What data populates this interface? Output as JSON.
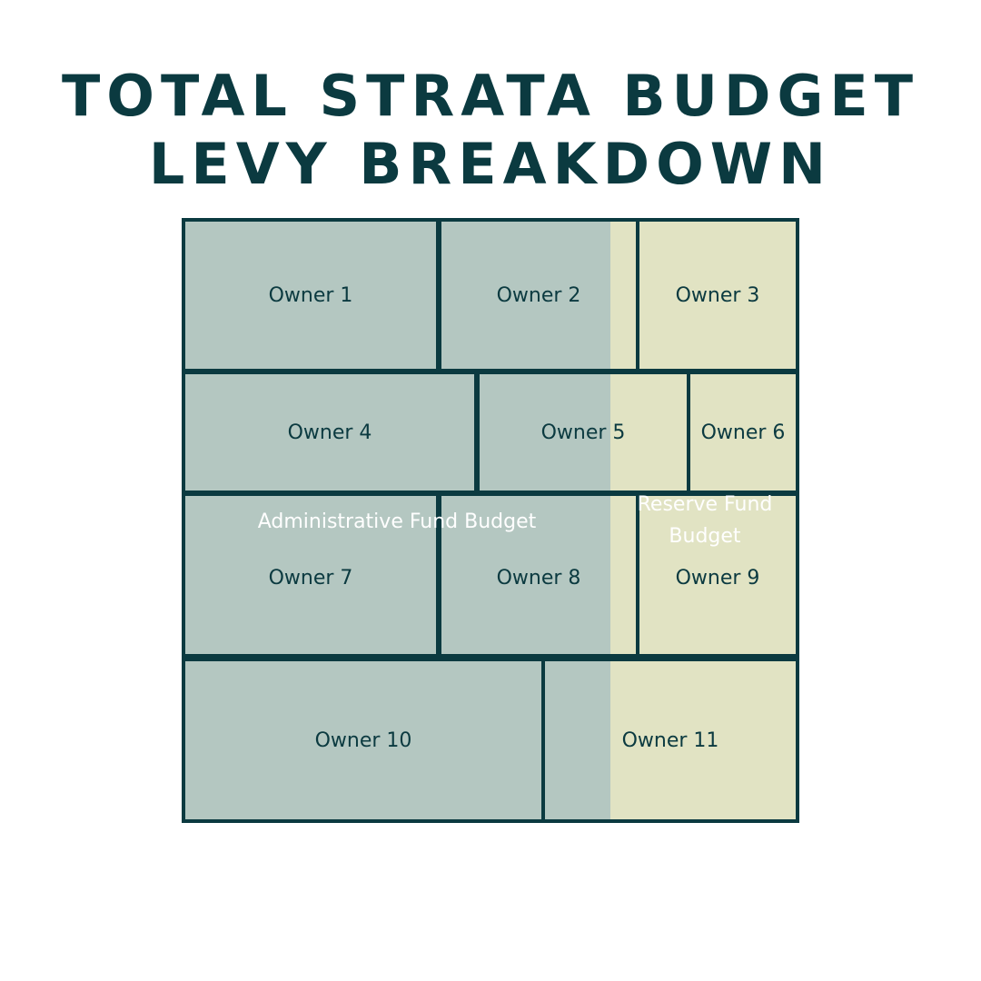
{
  "title": {
    "line1": "TOTAL STRATA BUDGET",
    "line2": "LEVY BREAKDOWN"
  },
  "bands": {
    "admin": {
      "label": "Administrative Fund Budget",
      "color": "#b4c7c1"
    },
    "reserve": {
      "label": "Reserve Fund Budget",
      "color": "#e1e3c3"
    }
  },
  "border_color": "#0b3a40",
  "owners": [
    "Owner 1",
    "Owner 2",
    "Owner 3",
    "Owner 4",
    "Owner 5",
    "Owner 6",
    "Owner 7",
    "Owner 8",
    "Owner 9",
    "Owner 10",
    "Owner 11"
  ]
}
